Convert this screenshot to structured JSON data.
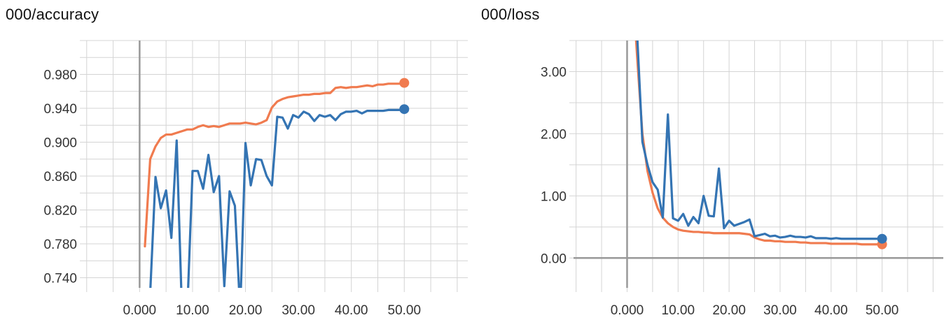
{
  "chart_data": [
    {
      "type": "line",
      "title": "000/accuracy",
      "xlabel": "",
      "ylabel": "",
      "xlim": [
        -10.5,
        62
      ],
      "ylim": [
        0.728,
        1.02
      ],
      "xticks": [
        0,
        10,
        20,
        30,
        40,
        50
      ],
      "xtick_labels": [
        "0.000",
        "10.00",
        "20.00",
        "30.00",
        "40.00",
        "50.00"
      ],
      "yticks": [
        0.74,
        0.78,
        0.82,
        0.86,
        0.9,
        0.94,
        0.98
      ],
      "ytick_labels": [
        "0.740",
        "0.780",
        "0.820",
        "0.860",
        "0.900",
        "0.940",
        "0.980"
      ],
      "grid": true,
      "colors": {
        "orange": "#f07b4f",
        "blue": "#3474b3"
      },
      "series": [
        {
          "color": "#f07b4f",
          "x": [
            1,
            2,
            3,
            4,
            5,
            6,
            7,
            8,
            9,
            10,
            11,
            12,
            13,
            14,
            15,
            16,
            17,
            18,
            19,
            20,
            21,
            22,
            23,
            24,
            25,
            26,
            27,
            28,
            29,
            30,
            31,
            32,
            33,
            34,
            35,
            36,
            37,
            38,
            39,
            40,
            41,
            42,
            43,
            44,
            45,
            46,
            47,
            48,
            49,
            50
          ],
          "y": [
            0.777,
            0.88,
            0.895,
            0.905,
            0.909,
            0.909,
            0.911,
            0.913,
            0.915,
            0.915,
            0.918,
            0.92,
            0.918,
            0.919,
            0.918,
            0.92,
            0.922,
            0.922,
            0.922,
            0.923,
            0.922,
            0.921,
            0.923,
            0.926,
            0.941,
            0.948,
            0.951,
            0.953,
            0.954,
            0.955,
            0.956,
            0.956,
            0.957,
            0.957,
            0.958,
            0.958,
            0.964,
            0.965,
            0.964,
            0.965,
            0.965,
            0.966,
            0.967,
            0.966,
            0.968,
            0.968,
            0.969,
            0.969,
            0.969,
            0.97
          ]
        },
        {
          "color": "#3474b3",
          "x": [
            2,
            3,
            4,
            5,
            6,
            7,
            8,
            9,
            10,
            11,
            12,
            13,
            14,
            15,
            16,
            17,
            18,
            19,
            20,
            21,
            22,
            23,
            24,
            25,
            26,
            27,
            28,
            29,
            30,
            31,
            32,
            33,
            34,
            35,
            36,
            37,
            38,
            39,
            40,
            41,
            42,
            43,
            44,
            45,
            46,
            47,
            48,
            49,
            50
          ],
          "y": [
            0.722,
            0.859,
            0.822,
            0.843,
            0.787,
            0.902,
            0.7,
            0.7,
            0.866,
            0.866,
            0.845,
            0.885,
            0.841,
            0.86,
            0.73,
            0.842,
            0.825,
            0.7,
            0.899,
            0.849,
            0.88,
            0.879,
            0.86,
            0.849,
            0.93,
            0.929,
            0.916,
            0.932,
            0.929,
            0.936,
            0.933,
            0.925,
            0.932,
            0.93,
            0.932,
            0.926,
            0.933,
            0.936,
            0.936,
            0.937,
            0.934,
            0.937,
            0.937,
            0.937,
            0.937,
            0.938,
            0.938,
            0.938,
            0.939
          ]
        }
      ]
    },
    {
      "type": "line",
      "title": "000/loss",
      "xlabel": "",
      "ylabel": "",
      "xlim": [
        -10.5,
        62
      ],
      "ylim": [
        -0.48,
        3.5
      ],
      "xticks": [
        0,
        10,
        20,
        30,
        40,
        50
      ],
      "xtick_labels": [
        "0.000",
        "10.00",
        "20.00",
        "30.00",
        "40.00",
        "50.00"
      ],
      "yticks": [
        0,
        1,
        2,
        3
      ],
      "ytick_labels": [
        "0.00",
        "1.00",
        "2.00",
        "3.00"
      ],
      "grid": true,
      "colors": {
        "orange": "#f07b4f",
        "blue": "#3474b3"
      },
      "series": [
        {
          "color": "#f07b4f",
          "x": [
            1,
            2,
            3,
            4,
            5,
            6,
            7,
            8,
            9,
            10,
            11,
            12,
            13,
            14,
            15,
            16,
            17,
            18,
            19,
            20,
            21,
            22,
            23,
            24,
            25,
            26,
            27,
            28,
            29,
            30,
            31,
            32,
            33,
            34,
            35,
            36,
            37,
            38,
            39,
            40,
            41,
            42,
            43,
            44,
            45,
            46,
            47,
            48,
            49,
            50
          ],
          "y": [
            4.5,
            3.2,
            2.0,
            1.4,
            1.05,
            0.8,
            0.65,
            0.56,
            0.5,
            0.46,
            0.44,
            0.43,
            0.42,
            0.42,
            0.41,
            0.41,
            0.4,
            0.4,
            0.4,
            0.4,
            0.4,
            0.4,
            0.39,
            0.38,
            0.33,
            0.3,
            0.28,
            0.28,
            0.27,
            0.27,
            0.26,
            0.26,
            0.26,
            0.25,
            0.25,
            0.24,
            0.24,
            0.24,
            0.24,
            0.23,
            0.23,
            0.23,
            0.23,
            0.23,
            0.23,
            0.22,
            0.22,
            0.22,
            0.22,
            0.22
          ]
        },
        {
          "color": "#3474b3",
          "x": [
            1,
            2,
            3,
            4,
            5,
            6,
            7,
            8,
            9,
            10,
            11,
            12,
            13,
            14,
            15,
            16,
            17,
            18,
            19,
            20,
            21,
            22,
            23,
            24,
            25,
            26,
            27,
            28,
            29,
            30,
            31,
            32,
            33,
            34,
            35,
            36,
            37,
            38,
            39,
            40,
            41,
            42,
            43,
            44,
            45,
            46,
            47,
            48,
            49,
            50
          ],
          "y": [
            4.5,
            3.55,
            1.87,
            1.5,
            1.22,
            1.1,
            0.65,
            2.31,
            0.64,
            0.6,
            0.71,
            0.52,
            0.66,
            0.56,
            1.0,
            0.68,
            0.67,
            1.44,
            0.48,
            0.6,
            0.52,
            0.55,
            0.58,
            0.62,
            0.35,
            0.37,
            0.39,
            0.35,
            0.36,
            0.33,
            0.34,
            0.36,
            0.34,
            0.34,
            0.33,
            0.35,
            0.32,
            0.32,
            0.32,
            0.31,
            0.32,
            0.31,
            0.31,
            0.31,
            0.31,
            0.31,
            0.31,
            0.31,
            0.31,
            0.31
          ]
        }
      ]
    }
  ]
}
